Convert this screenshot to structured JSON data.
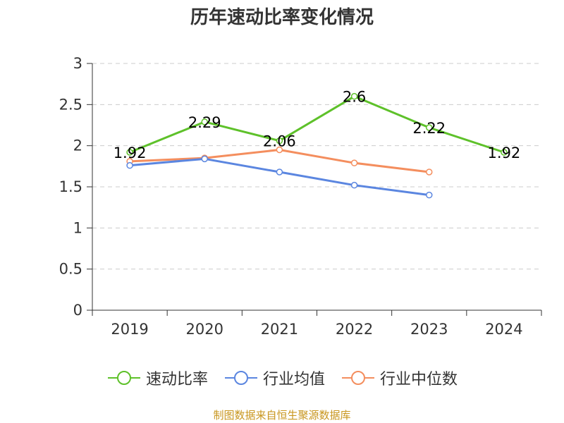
{
  "title": "历年速动比率变化情况",
  "source": "制图数据来自恒生聚源数据库",
  "chart_data": {
    "type": "line",
    "title": "历年速动比率变化情况",
    "categories": [
      "2019",
      "2020",
      "2021",
      "2022",
      "2023",
      "2024"
    ],
    "ylim": [
      0,
      3
    ],
    "yticks": [
      "0",
      "0.5",
      "1",
      "1.5",
      "2",
      "2.5",
      "3"
    ],
    "grid": true,
    "legend_position": "bottom",
    "series": [
      {
        "name": "速动比率",
        "color": "#5ec12a",
        "values": [
          1.92,
          2.29,
          2.06,
          2.6,
          2.22,
          1.92
        ],
        "labels": [
          "1.92",
          "2.29",
          "2.06",
          "2.6",
          "2.22",
          "1.92"
        ]
      },
      {
        "name": "行业均值",
        "color": "#5b86e0",
        "values": [
          1.76,
          1.84,
          1.68,
          1.52,
          1.4,
          null
        ]
      },
      {
        "name": "行业中位数",
        "color": "#f48e5e",
        "values": [
          1.81,
          1.85,
          1.95,
          1.79,
          1.68,
          null
        ]
      }
    ]
  }
}
